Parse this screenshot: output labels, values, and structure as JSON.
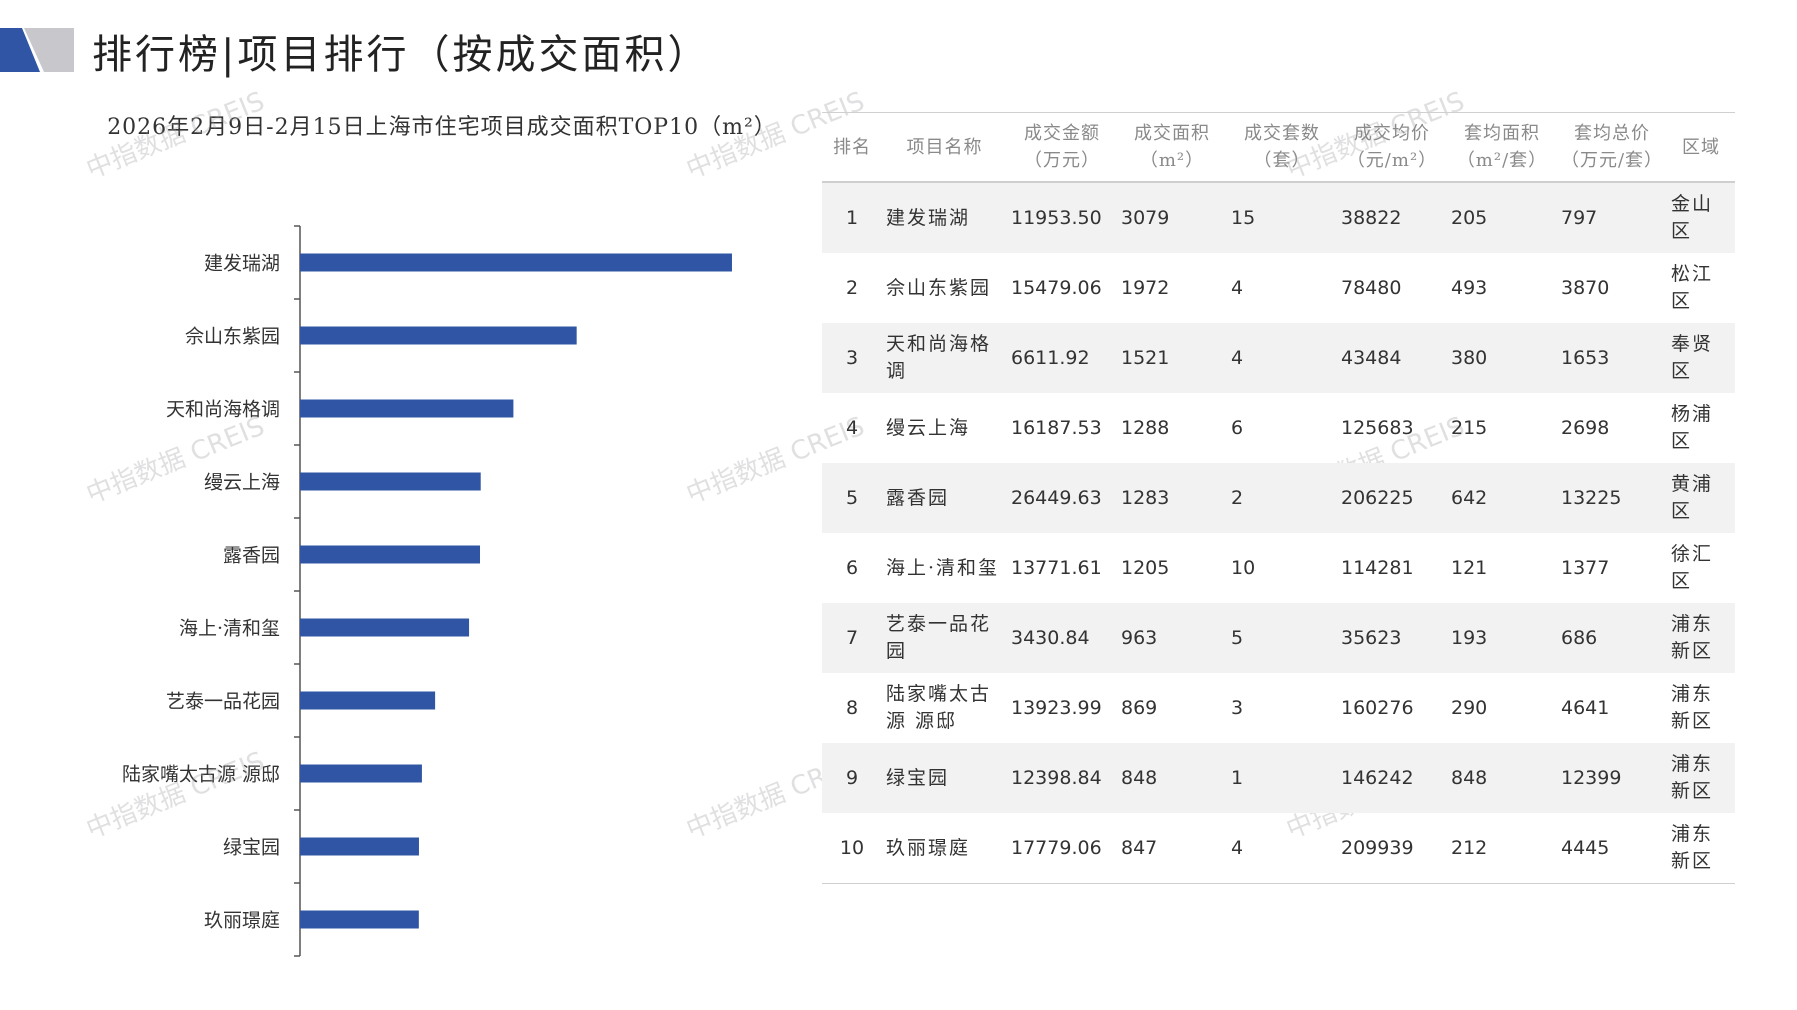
{
  "header": {
    "title": "排行榜|项目排行（按成交面积）"
  },
  "colors": {
    "bar": "#2f55a4",
    "logo_primary": "#2f55a4",
    "logo_secondary": "#c8c8cc",
    "axis": "#555555",
    "row_stripe": "#f2f2f2"
  },
  "watermark": {
    "text": "中指数据 CREIS"
  },
  "chart_data": {
    "type": "bar",
    "orientation": "horizontal",
    "title": "2026年2月9日-2月15日上海市住宅项目成交面积TOP10（m²）",
    "categories": [
      "建发瑞湖",
      "佘山东紫园",
      "天和尚海格调",
      "缦云上海",
      "露香园",
      "海上·清和玺",
      "艺泰一品花园",
      "陆家嘴太古源 源邸",
      "绿宝园",
      "玖丽璟庭"
    ],
    "values": [
      3079,
      1972,
      1521,
      1288,
      1283,
      1205,
      963,
      869,
      848,
      847
    ],
    "xlim": [
      0,
      3350
    ],
    "grid": false,
    "legend": "none"
  },
  "table": {
    "headers": [
      [
        "排名"
      ],
      [
        "项目名称"
      ],
      [
        "成交金额",
        "（万元）"
      ],
      [
        "成交面积",
        "（m²）"
      ],
      [
        "成交套数",
        "（套）"
      ],
      [
        "成交均价",
        "（元/m²）"
      ],
      [
        "套均面积",
        "（m²/套）"
      ],
      [
        "套均总价",
        "（万元/套）"
      ],
      [
        "区域"
      ]
    ],
    "rows": [
      [
        "1",
        "建发瑞湖",
        "11953.50",
        "3079",
        "15",
        "38822",
        "205",
        "797",
        "金山区"
      ],
      [
        "2",
        "佘山东紫园",
        "15479.06",
        "1972",
        "4",
        "78480",
        "493",
        "3870",
        "松江区"
      ],
      [
        "3",
        "天和尚海格调",
        "6611.92",
        "1521",
        "4",
        "43484",
        "380",
        "1653",
        "奉贤区"
      ],
      [
        "4",
        "缦云上海",
        "16187.53",
        "1288",
        "6",
        "125683",
        "215",
        "2698",
        "杨浦区"
      ],
      [
        "5",
        "露香园",
        "26449.63",
        "1283",
        "2",
        "206225",
        "642",
        "13225",
        "黄浦区"
      ],
      [
        "6",
        "海上·清和玺",
        "13771.61",
        "1205",
        "10",
        "114281",
        "121",
        "1377",
        "徐汇区"
      ],
      [
        "7",
        "艺泰一品花园",
        "3430.84",
        "963",
        "5",
        "35623",
        "193",
        "686",
        "浦东新区"
      ],
      [
        "8",
        "陆家嘴太古源 源邸",
        "13923.99",
        "869",
        "3",
        "160276",
        "290",
        "4641",
        "浦东新区"
      ],
      [
        "9",
        "绿宝园",
        "12398.84",
        "848",
        "1",
        "146242",
        "848",
        "12399",
        "浦东新区"
      ],
      [
        "10",
        "玖丽璟庭",
        "17779.06",
        "847",
        "4",
        "209939",
        "212",
        "4445",
        "浦东新区"
      ]
    ]
  }
}
